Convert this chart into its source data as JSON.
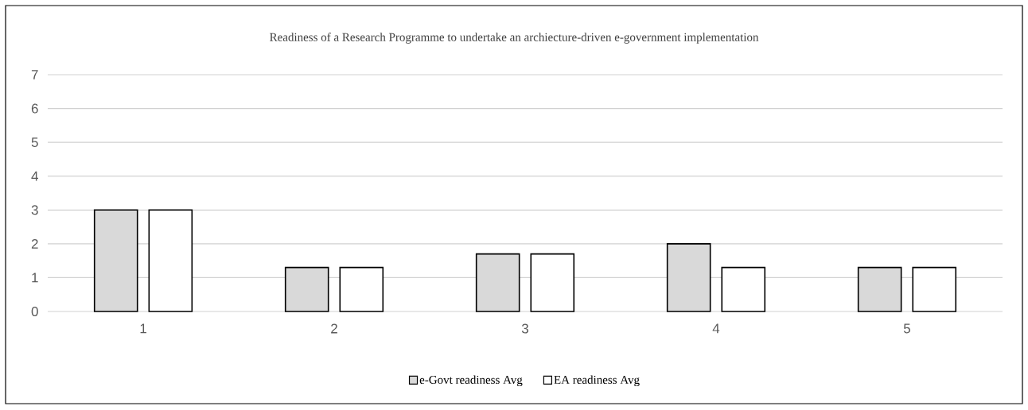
{
  "chart_data": {
    "type": "bar",
    "title": "Readiness of a Research Programme to undertake an archiecture-driven e-government implementation",
    "categories": [
      "1",
      "2",
      "3",
      "4",
      "5"
    ],
    "series": [
      {
        "name": "e-Govt readiness Avg",
        "color": "#d9d9d9",
        "values": [
          3,
          1.3,
          1.7,
          2,
          1.3
        ]
      },
      {
        "name": "EA readiness Avg",
        "color": "#ffffff",
        "values": [
          3,
          1.3,
          1.7,
          1.3,
          1.3
        ]
      }
    ],
    "ylim": [
      0,
      7
    ],
    "yticks": [
      0,
      1,
      2,
      3,
      4,
      5,
      6,
      7
    ],
    "grid": "y",
    "legend": "bottom"
  }
}
